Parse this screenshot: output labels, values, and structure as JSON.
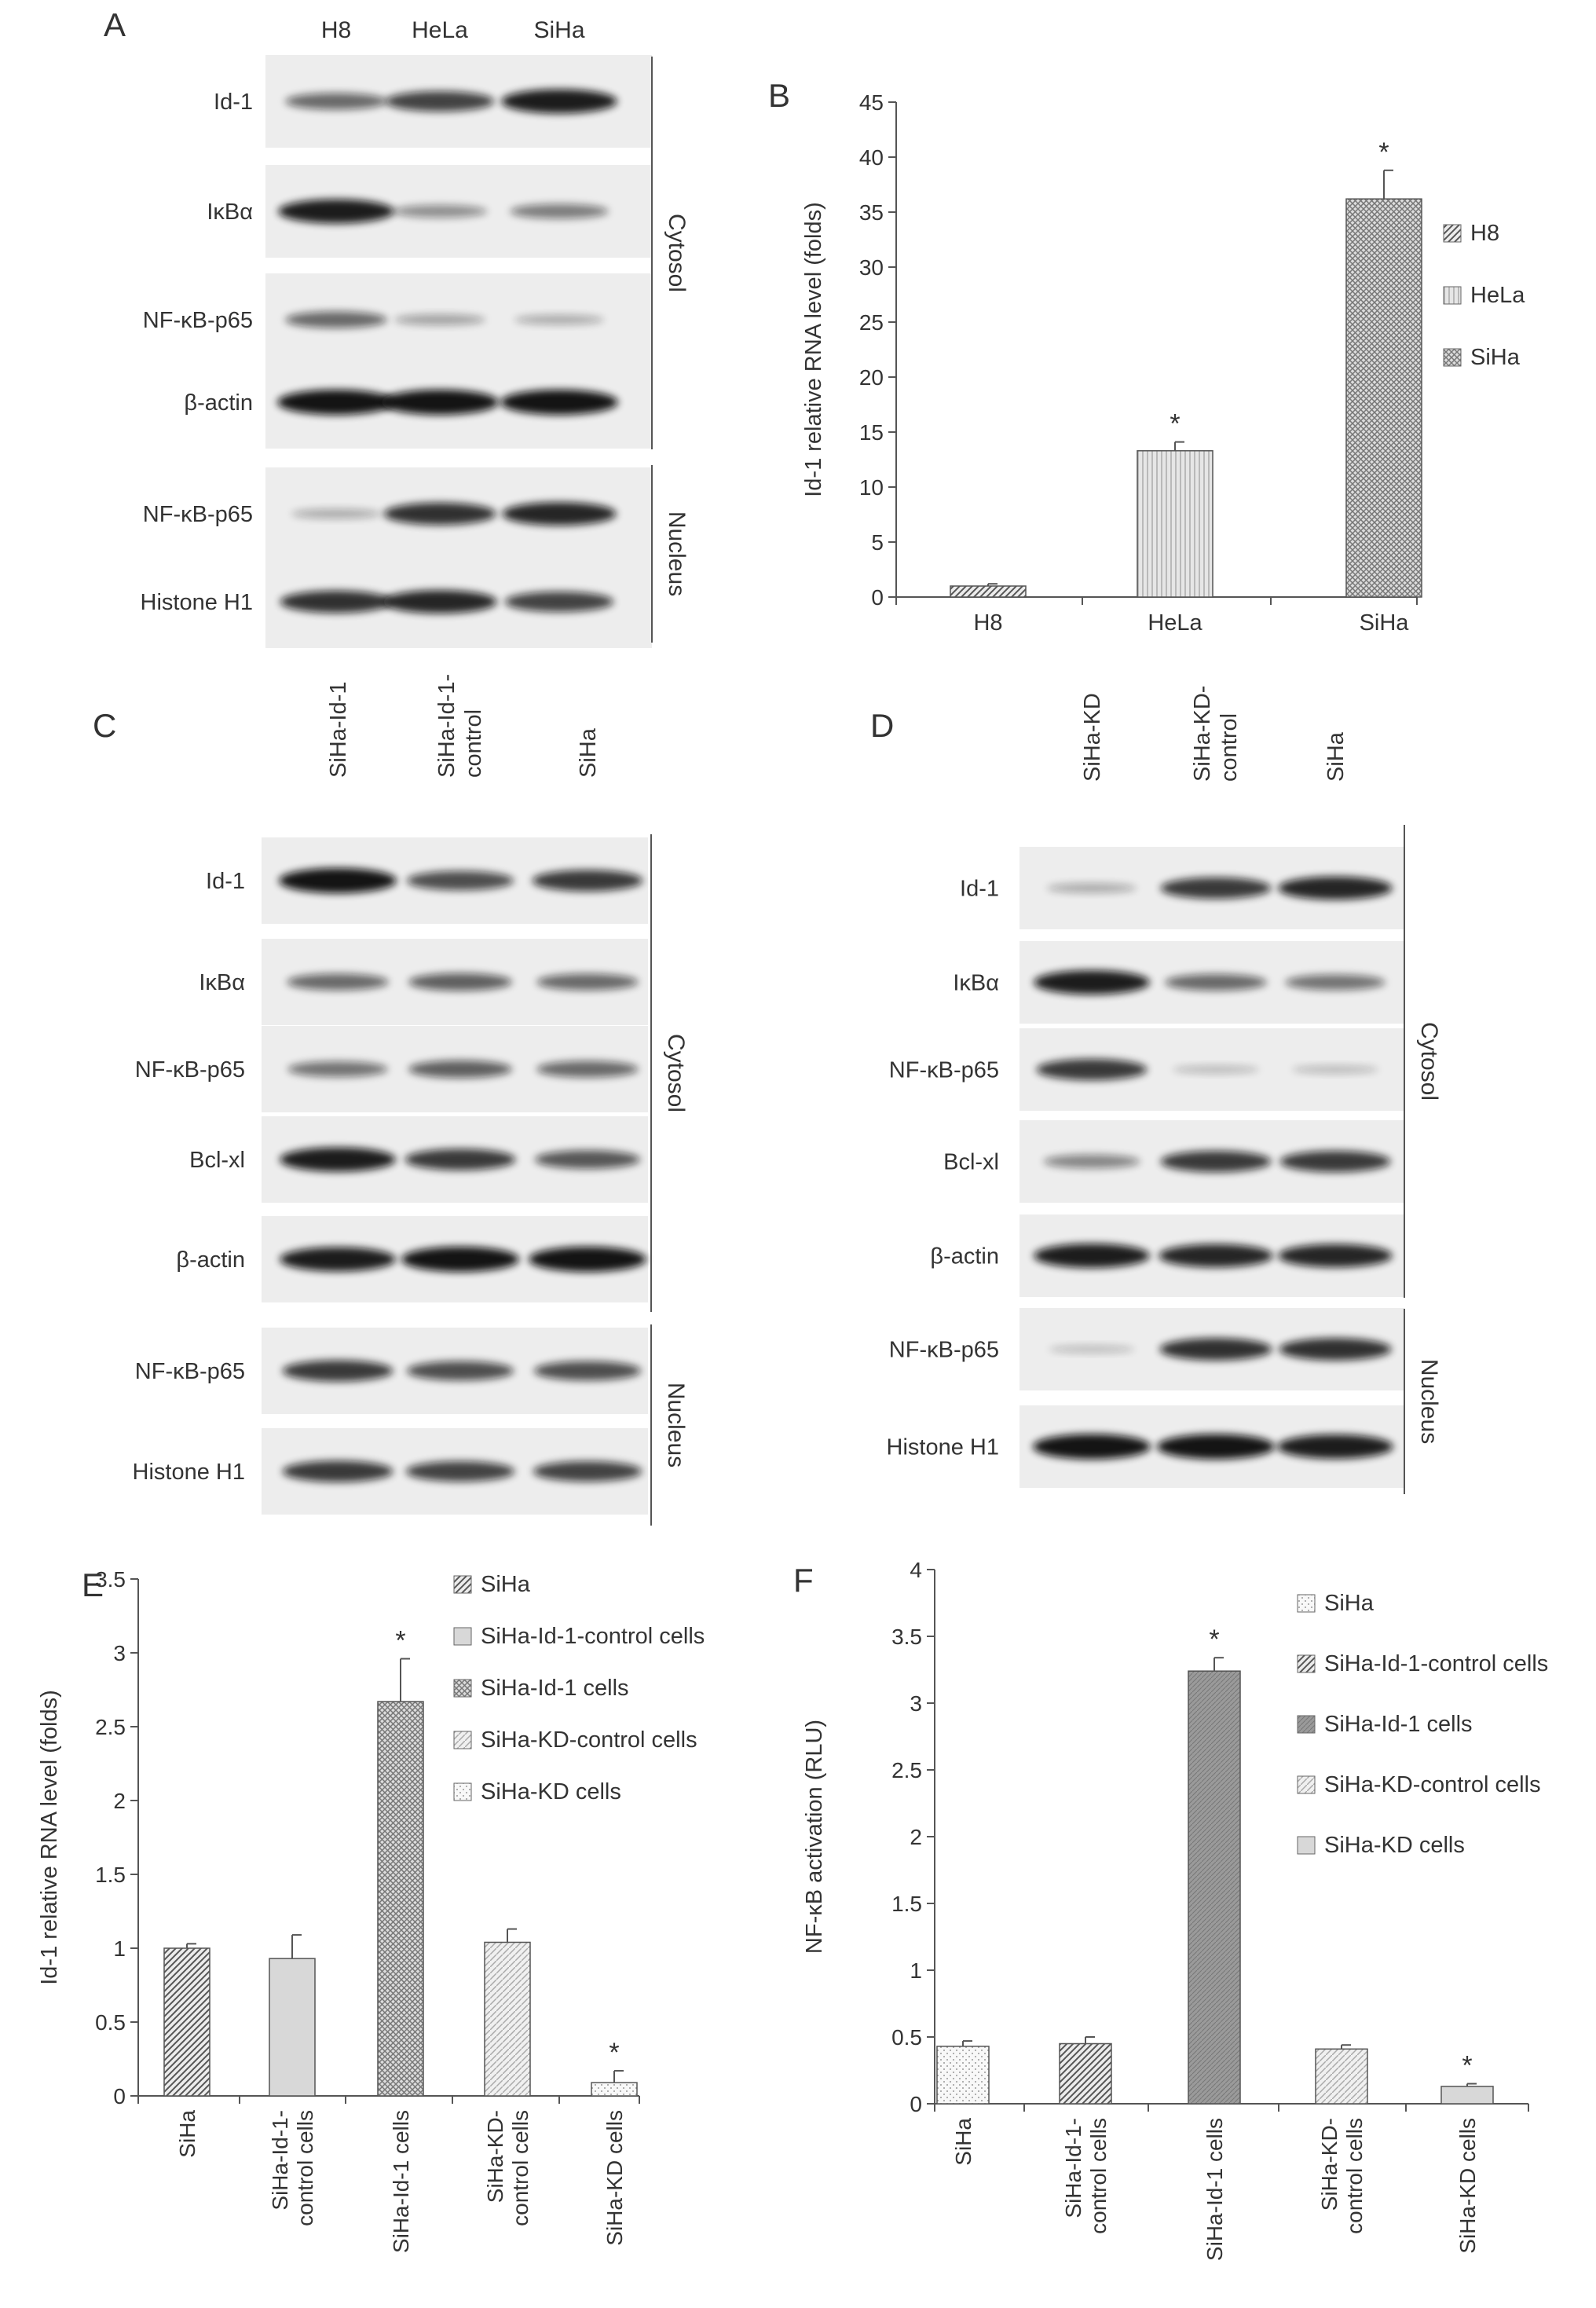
{
  "panels": {
    "A": {
      "letter": "A",
      "lanes": [
        "H8",
        "HeLa",
        "SiHa"
      ],
      "rows": [
        "Id-1",
        "IκBα",
        "NF-κB-p65",
        "β-actin",
        "NF-κB-p65",
        "Histone H1"
      ],
      "bands": [
        [
          0.55,
          0.75,
          0.95
        ],
        [
          0.95,
          0.35,
          0.45
        ],
        [
          0.55,
          0.25,
          0.2
        ],
        [
          1.0,
          1.0,
          1.0
        ],
        [
          0.2,
          0.85,
          0.9
        ],
        [
          0.85,
          0.9,
          0.75
        ]
      ],
      "groups": [
        "Cytosol",
        "Nucleus"
      ]
    },
    "C": {
      "letter": "C",
      "lanes": [
        "SiHa-Id-1",
        "SiHa-Id-1-\ncontrol",
        "SiHa"
      ],
      "rows": [
        "Id-1",
        "IκBα",
        "NF-κB-p65",
        "Bcl-xl",
        "β-actin",
        "NF-κB-p65",
        "Histone H1"
      ],
      "bands": [
        [
          1.0,
          0.7,
          0.8
        ],
        [
          0.55,
          0.6,
          0.55
        ],
        [
          0.5,
          0.6,
          0.55
        ],
        [
          0.95,
          0.8,
          0.65
        ],
        [
          0.95,
          1.0,
          1.0
        ],
        [
          0.8,
          0.7,
          0.7
        ],
        [
          0.8,
          0.75,
          0.75
        ]
      ],
      "groups": [
        "Cytosol",
        "Nucleus"
      ]
    },
    "D": {
      "letter": "D",
      "lanes": [
        "SiHa-KD",
        "SiHa-KD-\ncontrol",
        "SiHa"
      ],
      "rows": [
        "Id-1",
        "IκBα",
        "NF-κB-p65",
        "Bcl-xl",
        "β-actin",
        "NF-κB-p65",
        "Histone H1"
      ],
      "bands": [
        [
          0.2,
          0.8,
          0.9
        ],
        [
          0.95,
          0.55,
          0.5
        ],
        [
          0.8,
          0.12,
          0.12
        ],
        [
          0.4,
          0.8,
          0.8
        ],
        [
          0.95,
          0.9,
          0.9
        ],
        [
          0.1,
          0.85,
          0.85
        ],
        [
          1.0,
          1.0,
          0.95
        ]
      ],
      "groups": [
        "Cytosol",
        "Nucleus"
      ]
    }
  },
  "chart_data": [
    {
      "panel": "B",
      "type": "bar",
      "ylabel": "Id-1 relative RNA level (folds)",
      "ylim": [
        0,
        45
      ],
      "yticks": [
        "0",
        "5",
        "10",
        "15",
        "20",
        "25",
        "30",
        "35",
        "40",
        "45"
      ],
      "categories": [
        "H8",
        "HeLa",
        "SiHa"
      ],
      "values": [
        1.0,
        13.3,
        36.2
      ],
      "errors": [
        0.2,
        0.8,
        2.6
      ],
      "significance": [
        "",
        "*",
        "*"
      ],
      "legend": [
        "H8",
        "HeLa",
        "SiHa"
      ],
      "legend_position": "right"
    },
    {
      "panel": "E",
      "type": "bar",
      "ylabel": "Id-1 relative RNA level (folds)",
      "ylim": [
        0,
        3.5
      ],
      "yticks": [
        "0",
        "0.5",
        "1",
        "1.5",
        "2",
        "2.5",
        "3",
        "3.5"
      ],
      "categories": [
        "SiHa",
        "SiHa-Id-1-\ncontrol cells",
        "SiHa-Id-1 cells",
        "SiHa-KD-\ncontrol cells",
        "SiHa-KD cells"
      ],
      "values": [
        1.0,
        0.93,
        2.67,
        1.04,
        0.09
      ],
      "errors": [
        0.03,
        0.16,
        0.29,
        0.09,
        0.08
      ],
      "significance": [
        "",
        "",
        "*",
        "",
        "*"
      ],
      "legend": [
        "SiHa",
        "SiHa-Id-1-control cells",
        "SiHa-Id-1 cells",
        "SiHa-KD-control cells",
        "SiHa-KD cells"
      ],
      "legend_position": "top-right"
    },
    {
      "panel": "F",
      "type": "bar",
      "ylabel": "NF-κB activation (RLU)",
      "ylim": [
        0,
        4
      ],
      "yticks": [
        "0",
        "0.5",
        "1",
        "1.5",
        "2",
        "2.5",
        "3",
        "3.5",
        "4"
      ],
      "categories": [
        "SiHa",
        "SiHa-Id-1-\ncontrol cells",
        "SiHa-Id-1 cells",
        "SiHa-KD-\ncontrol cells",
        "SiHa-KD cells"
      ],
      "values": [
        0.43,
        0.45,
        3.24,
        0.41,
        0.13
      ],
      "errors": [
        0.04,
        0.05,
        0.1,
        0.03,
        0.02
      ],
      "significance": [
        "",
        "",
        "*",
        "",
        "*"
      ],
      "legend": [
        "SiHa",
        "SiHa-Id-1-control cells",
        "SiHa-Id-1 cells",
        "SiHa-KD-control cells",
        "SiHa-KD cells"
      ],
      "legend_position": "top-right"
    }
  ],
  "colors": {
    "text": "#333333",
    "axis": "#555555",
    "band": "#111111",
    "blot_bg": "#ececec"
  }
}
